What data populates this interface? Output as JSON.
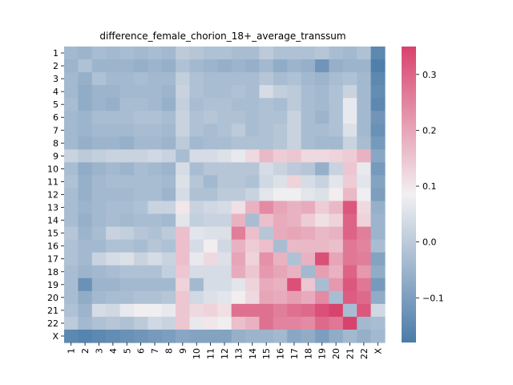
{
  "chart_data": {
    "type": "heatmap",
    "title": "difference_female_chorion_18+_average_transsum",
    "xlabel": "",
    "ylabel": "",
    "categories": [
      "1",
      "2",
      "3",
      "4",
      "5",
      "6",
      "7",
      "8",
      "9",
      "10",
      "11",
      "12",
      "13",
      "14",
      "15",
      "16",
      "17",
      "18",
      "19",
      "20",
      "21",
      "22",
      "X"
    ],
    "vmin": -0.18,
    "vmax": 0.35,
    "colormap": {
      "low": "#4a7ba8",
      "mid": "#f2f0f2",
      "high": "#d8436d"
    },
    "colorbar_ticks": [
      -0.1,
      0.0,
      0.1,
      0.2,
      0.3
    ],
    "colorbar_tick_labels": [
      "−0.1",
      "0.0",
      "0.1",
      "0.2",
      "0.3"
    ],
    "values": [
      [
        -0.04,
        -0.05,
        -0.03,
        -0.04,
        -0.03,
        -0.04,
        -0.03,
        -0.04,
        0.0,
        -0.01,
        -0.02,
        -0.02,
        -0.03,
        -0.03,
        0.0,
        -0.02,
        -0.02,
        -0.02,
        -0.01,
        -0.03,
        -0.04,
        -0.02,
        -0.15
      ],
      [
        -0.05,
        -0.02,
        -0.05,
        -0.05,
        -0.05,
        -0.06,
        -0.05,
        -0.06,
        -0.02,
        -0.04,
        -0.05,
        -0.06,
        -0.05,
        -0.06,
        -0.04,
        -0.07,
        -0.05,
        -0.06,
        -0.12,
        -0.06,
        -0.05,
        -0.05,
        -0.17
      ],
      [
        -0.04,
        -0.06,
        -0.02,
        -0.04,
        -0.04,
        -0.03,
        -0.04,
        -0.04,
        0.01,
        -0.02,
        -0.03,
        -0.03,
        -0.03,
        -0.03,
        -0.01,
        -0.03,
        -0.02,
        -0.04,
        -0.05,
        -0.03,
        -0.02,
        -0.04,
        -0.15
      ],
      [
        -0.04,
        -0.07,
        -0.05,
        -0.05,
        -0.04,
        -0.04,
        -0.04,
        -0.05,
        0.02,
        -0.02,
        -0.03,
        -0.03,
        -0.02,
        -0.03,
        0.04,
        0.01,
        0.0,
        -0.03,
        -0.04,
        -0.02,
        0.02,
        -0.04,
        -0.14
      ],
      [
        -0.03,
        -0.07,
        -0.05,
        -0.06,
        -0.03,
        -0.03,
        -0.04,
        -0.06,
        0.01,
        -0.03,
        -0.02,
        -0.02,
        -0.03,
        -0.03,
        -0.02,
        -0.03,
        0.0,
        -0.03,
        -0.04,
        -0.02,
        0.07,
        -0.04,
        -0.15
      ],
      [
        -0.04,
        -0.05,
        -0.03,
        -0.03,
        -0.03,
        -0.02,
        -0.02,
        -0.03,
        0.02,
        -0.02,
        -0.01,
        -0.02,
        -0.02,
        -0.03,
        -0.02,
        -0.02,
        0.02,
        -0.03,
        -0.05,
        -0.02,
        0.07,
        -0.04,
        -0.12
      ],
      [
        -0.04,
        -0.05,
        -0.04,
        -0.04,
        -0.04,
        -0.03,
        -0.03,
        -0.04,
        0.02,
        -0.02,
        -0.03,
        -0.02,
        0.0,
        -0.03,
        -0.02,
        -0.01,
        0.02,
        -0.03,
        -0.03,
        -0.02,
        0.05,
        -0.04,
        -0.13
      ],
      [
        -0.04,
        -0.06,
        -0.05,
        -0.05,
        -0.06,
        -0.04,
        -0.04,
        -0.05,
        0.0,
        -0.04,
        -0.03,
        -0.03,
        -0.02,
        -0.02,
        -0.02,
        -0.01,
        0.02,
        -0.03,
        -0.04,
        -0.04,
        0.02,
        -0.03,
        -0.11
      ],
      [
        0.02,
        0.0,
        0.01,
        0.02,
        0.02,
        0.02,
        0.03,
        0.02,
        -0.03,
        0.04,
        0.04,
        0.05,
        0.07,
        0.12,
        0.17,
        0.14,
        0.15,
        0.12,
        0.12,
        0.13,
        0.14,
        0.18,
        -0.08
      ],
      [
        -0.03,
        -0.07,
        -0.05,
        -0.04,
        -0.05,
        -0.03,
        -0.04,
        -0.05,
        0.04,
        -0.03,
        -0.01,
        -0.01,
        -0.01,
        -0.01,
        0.04,
        0.02,
        0.0,
        -0.01,
        -0.06,
        0.02,
        0.15,
        0.07,
        -0.11
      ],
      [
        -0.02,
        -0.06,
        -0.04,
        -0.03,
        -0.03,
        -0.03,
        -0.03,
        -0.04,
        0.05,
        -0.01,
        -0.04,
        -0.01,
        -0.01,
        -0.02,
        0.03,
        0.05,
        0.13,
        0.04,
        0.02,
        0.06,
        0.14,
        0.06,
        -0.09
      ],
      [
        -0.03,
        -0.06,
        -0.04,
        -0.04,
        -0.04,
        -0.03,
        -0.03,
        -0.05,
        0.04,
        -0.02,
        -0.02,
        0.0,
        0.0,
        0.02,
        0.06,
        0.08,
        0.08,
        0.06,
        0.05,
        0.09,
        0.17,
        0.08,
        -0.1
      ],
      [
        -0.03,
        -0.05,
        -0.04,
        -0.03,
        -0.03,
        -0.02,
        0.02,
        0.02,
        0.1,
        0.02,
        0.03,
        0.04,
        0.11,
        0.18,
        0.24,
        0.2,
        0.18,
        0.19,
        0.14,
        0.17,
        0.32,
        0.12,
        -0.06
      ],
      [
        -0.03,
        -0.06,
        -0.04,
        -0.03,
        -0.04,
        -0.03,
        -0.03,
        -0.04,
        0.06,
        0.01,
        0.02,
        0.02,
        0.18,
        -0.03,
        0.16,
        0.19,
        0.18,
        0.14,
        0.11,
        0.13,
        0.3,
        0.13,
        -0.05
      ],
      [
        -0.01,
        -0.05,
        -0.03,
        0.02,
        0.01,
        -0.01,
        -0.02,
        0.0,
        0.16,
        0.06,
        0.05,
        0.05,
        0.26,
        0.16,
        -0.01,
        0.19,
        0.2,
        0.19,
        0.17,
        0.18,
        0.3,
        0.26,
        -0.05
      ],
      [
        -0.02,
        -0.04,
        -0.04,
        -0.02,
        -0.02,
        -0.03,
        -0.01,
        -0.02,
        0.16,
        0.04,
        0.09,
        0.03,
        0.18,
        0.14,
        0.16,
        -0.03,
        0.17,
        0.17,
        0.17,
        0.16,
        0.27,
        0.25,
        -0.03
      ],
      [
        -0.02,
        -0.04,
        0.02,
        0.04,
        0.05,
        0.02,
        0.04,
        0.02,
        0.16,
        0.07,
        0.12,
        0.05,
        0.2,
        0.13,
        0.23,
        0.18,
        -0.02,
        0.18,
        0.33,
        0.2,
        0.27,
        0.26,
        -0.09
      ],
      [
        -0.03,
        -0.05,
        -0.04,
        -0.03,
        -0.02,
        -0.02,
        -0.02,
        0.01,
        0.15,
        0.04,
        0.04,
        0.04,
        0.19,
        0.15,
        0.22,
        0.2,
        0.18,
        -0.04,
        0.21,
        0.18,
        0.3,
        0.22,
        -0.07
      ],
      [
        -0.03,
        -0.13,
        -0.05,
        -0.05,
        -0.04,
        -0.04,
        -0.04,
        -0.04,
        0.13,
        -0.04,
        0.04,
        0.04,
        0.06,
        0.13,
        0.19,
        0.18,
        0.33,
        0.15,
        -0.03,
        0.22,
        0.32,
        0.27,
        -0.11
      ],
      [
        -0.03,
        -0.07,
        -0.04,
        -0.03,
        -0.03,
        -0.02,
        -0.02,
        -0.01,
        0.15,
        0.03,
        0.05,
        0.06,
        0.09,
        0.12,
        0.2,
        0.19,
        0.21,
        0.19,
        0.24,
        -0.03,
        0.31,
        0.29,
        -0.07
      ],
      [
        -0.02,
        -0.05,
        0.04,
        0.03,
        0.07,
        0.09,
        0.08,
        0.07,
        0.15,
        0.12,
        0.13,
        0.11,
        0.28,
        0.28,
        0.28,
        0.26,
        0.28,
        0.29,
        0.33,
        0.35,
        -0.03,
        0.32,
        0.03
      ],
      [
        0.0,
        -0.04,
        -0.02,
        -0.01,
        -0.02,
        0.0,
        0.03,
        0.02,
        0.15,
        0.07,
        0.1,
        0.08,
        0.16,
        0.18,
        0.28,
        0.25,
        0.25,
        0.24,
        0.29,
        0.27,
        0.35,
        -0.04,
        -0.03
      ],
      [
        -0.15,
        -0.16,
        -0.15,
        -0.14,
        -0.13,
        -0.12,
        -0.11,
        -0.1,
        -0.08,
        -0.09,
        -0.09,
        -0.09,
        -0.06,
        -0.05,
        -0.05,
        -0.04,
        -0.08,
        -0.07,
        -0.1,
        -0.07,
        -0.04,
        -0.06,
        -0.04
      ]
    ]
  }
}
